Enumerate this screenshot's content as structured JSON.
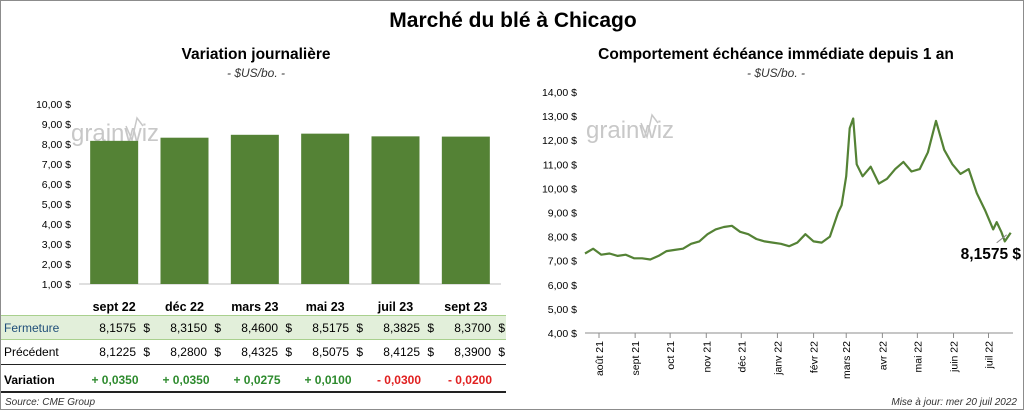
{
  "title": "Marché du blé à Chicago",
  "source": "Source: CME Group",
  "updated": "Mise à jour: mer 20 juil 2022",
  "watermark": {
    "text": "grainwiz",
    "color": "#c8c8c8"
  },
  "colors": {
    "bar": "#548235",
    "line": "#548235",
    "positive": "#2e8b2e",
    "negative": "#e02020",
    "closing_row": "#e2efda"
  },
  "chart_data": [
    {
      "type": "bar",
      "title": "Variation journalière",
      "subtitle": "- $US/bo. -",
      "categories": [
        "sept 22",
        "déc 22",
        "mars 23",
        "mai 23",
        "juil 23",
        "sept 23"
      ],
      "values": [
        8.1575,
        8.315,
        8.46,
        8.5175,
        8.3825,
        8.37
      ],
      "ylim": [
        1,
        10
      ],
      "yticks": [
        "1,00 $",
        "2,00 $",
        "3,00 $",
        "4,00 $",
        "5,00 $",
        "6,00 $",
        "7,00 $",
        "8,00 $",
        "9,00 $",
        "10,00 $"
      ],
      "grid": false
    },
    {
      "type": "line",
      "title": "Comportement échéance immédiate depuis 1 an",
      "subtitle": "- $US/bo. -",
      "x": [
        "2021-07-20",
        "2021-07-27",
        "2021-08-03",
        "2021-08-10",
        "2021-08-17",
        "2021-08-24",
        "2021-08-31",
        "2021-09-07",
        "2021-09-14",
        "2021-09-21",
        "2021-09-28",
        "2021-10-05",
        "2021-10-12",
        "2021-10-19",
        "2021-10-26",
        "2021-11-02",
        "2021-11-09",
        "2021-11-16",
        "2021-11-23",
        "2021-11-30",
        "2021-12-07",
        "2021-12-14",
        "2021-12-21",
        "2021-12-28",
        "2022-01-04",
        "2022-01-11",
        "2022-01-18",
        "2022-01-25",
        "2022-02-01",
        "2022-02-08",
        "2022-02-15",
        "2022-02-22",
        "2022-02-25",
        "2022-03-01",
        "2022-03-04",
        "2022-03-07",
        "2022-03-10",
        "2022-03-15",
        "2022-03-22",
        "2022-03-29",
        "2022-04-05",
        "2022-04-12",
        "2022-04-19",
        "2022-04-26",
        "2022-05-03",
        "2022-05-10",
        "2022-05-17",
        "2022-05-24",
        "2022-05-31",
        "2022-06-07",
        "2022-06-14",
        "2022-06-21",
        "2022-06-28",
        "2022-07-05",
        "2022-07-08",
        "2022-07-12",
        "2022-07-15",
        "2022-07-20"
      ],
      "values": [
        7.3,
        7.5,
        7.25,
        7.3,
        7.2,
        7.25,
        7.1,
        7.1,
        7.05,
        7.2,
        7.4,
        7.45,
        7.5,
        7.7,
        7.8,
        8.1,
        8.3,
        8.4,
        8.45,
        8.2,
        8.1,
        7.9,
        7.8,
        7.75,
        7.7,
        7.6,
        7.75,
        8.1,
        7.8,
        7.75,
        8.0,
        9.0,
        9.3,
        10.5,
        12.5,
        12.9,
        11.0,
        10.5,
        10.9,
        10.2,
        10.4,
        10.8,
        11.1,
        10.7,
        10.8,
        11.5,
        12.8,
        11.6,
        11.0,
        10.6,
        10.8,
        9.8,
        9.1,
        8.3,
        8.6,
        8.2,
        7.8,
        8.1575
      ],
      "last_label": "8,1575 $",
      "xlabels": [
        "août 21",
        "sept 21",
        "oct 21",
        "nov 21",
        "déc 21",
        "janv 22",
        "févr 22",
        "mars 22",
        "avr 22",
        "mai 22",
        "juin 22",
        "juil 22"
      ],
      "xlabel_dates": [
        "2021-08-01",
        "2021-09-01",
        "2021-10-01",
        "2021-11-01",
        "2021-12-01",
        "2022-01-01",
        "2022-02-01",
        "2022-03-01",
        "2022-04-01",
        "2022-05-01",
        "2022-06-01",
        "2022-07-01"
      ],
      "ylim": [
        4,
        14
      ],
      "yticks": [
        "4,00 $",
        "5,00 $",
        "6,00 $",
        "7,00 $",
        "8,00 $",
        "9,00 $",
        "10,00 $",
        "11,00 $",
        "12,00 $",
        "13,00 $",
        "14,00 $"
      ],
      "grid": false
    }
  ],
  "table": {
    "rows": [
      {
        "label": "Fermeture",
        "values": [
          "8,1575",
          "8,3150",
          "8,4600",
          "8,5175",
          "8,3825",
          "8,3700"
        ],
        "currency": "$"
      },
      {
        "label": "Précédent",
        "values": [
          "8,1225",
          "8,2800",
          "8,4325",
          "8,5075",
          "8,4125",
          "8,3900"
        ],
        "currency": "$"
      }
    ],
    "variation": {
      "label": "Variation",
      "values": [
        "+ 0,0350",
        "+ 0,0350",
        "+ 0,0275",
        "+ 0,0100",
        "- 0,0300",
        "- 0,0200"
      ]
    }
  }
}
